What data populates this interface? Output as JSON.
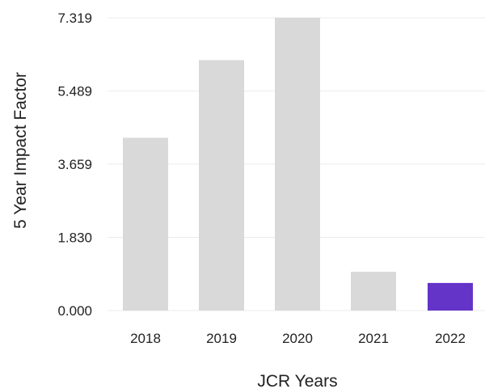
{
  "chart_data": {
    "type": "bar",
    "title": "",
    "xlabel": "JCR Years",
    "ylabel": "5 Year Impact Factor",
    "categories": [
      "2018",
      "2019",
      "2020",
      "2021",
      "2022"
    ],
    "values": [
      4.32,
      6.26,
      7.319,
      0.97,
      0.69
    ],
    "highlight_category": "2022",
    "y_ticks": [
      "0.000",
      "1.830",
      "3.659",
      "5.489",
      "7.319"
    ],
    "y_tick_values": [
      0,
      1.83,
      3.659,
      5.489,
      7.319
    ],
    "ylim": [
      0,
      7.319
    ],
    "grid": true,
    "legend": "none",
    "colors": {
      "bar": "#d9d9d9",
      "highlight": "#6434c8",
      "grid": "#ebebeb",
      "text": "#222222"
    }
  }
}
